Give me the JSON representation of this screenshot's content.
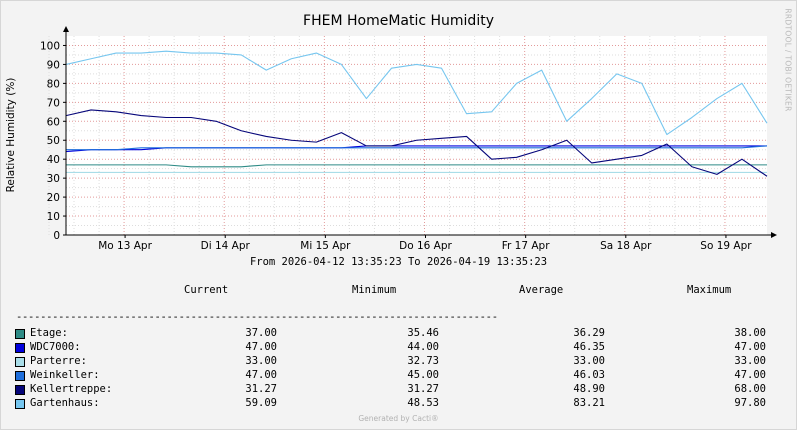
{
  "chart_data": {
    "type": "line",
    "title": "FHEM HomeMatic Humidity",
    "ylabel": "Relative Humidity (%)",
    "ylim": [
      0,
      105
    ],
    "yticks": [
      0,
      10,
      20,
      30,
      40,
      50,
      60,
      70,
      80,
      90,
      100
    ],
    "xticks": [
      "Mo 13 Apr",
      "Di 14 Apr",
      "Mi 15 Apr",
      "Do 16 Apr",
      "Fr 17 Apr",
      "Sa 18 Apr",
      "So 19 Apr"
    ],
    "x": [
      0.0,
      0.25,
      0.5,
      0.75,
      1.0,
      1.25,
      1.5,
      1.75,
      2.0,
      2.25,
      2.5,
      2.75,
      3.0,
      3.25,
      3.5,
      3.75,
      4.0,
      4.25,
      4.5,
      4.75,
      5.0,
      5.25,
      5.5,
      5.75,
      6.0,
      6.25,
      6.5,
      6.75,
      7.0
    ],
    "series": [
      {
        "name": "Etage",
        "color": "#2e8b86",
        "values": [
          37,
          37,
          37,
          37,
          37,
          36,
          36,
          36,
          37,
          37,
          37,
          37,
          37,
          37,
          37,
          37,
          37,
          37,
          37,
          37,
          37,
          37,
          37,
          37,
          37,
          37,
          37,
          37,
          37
        ]
      },
      {
        "name": "WDC7000",
        "color": "#0000dd",
        "values": [
          44,
          45,
          45,
          45,
          46,
          46,
          46,
          46,
          46,
          46,
          46,
          46,
          47,
          47,
          47,
          47,
          47,
          47,
          47,
          47,
          47,
          47,
          47,
          47,
          47,
          47,
          47,
          47,
          47
        ]
      },
      {
        "name": "Parterre",
        "color": "#a9dde8",
        "values": [
          33,
          33,
          33,
          33,
          33,
          33,
          33,
          33,
          33,
          33,
          33,
          33,
          33,
          33,
          33,
          33,
          33,
          33,
          33,
          33,
          33,
          33,
          33,
          33,
          33,
          33,
          33,
          33,
          33
        ]
      },
      {
        "name": "Weinkeller",
        "color": "#1f6fdc",
        "values": [
          45,
          45,
          45,
          46,
          46,
          46,
          46,
          46,
          46,
          46,
          46,
          46,
          46,
          46,
          46,
          46,
          46,
          46,
          46,
          46,
          46,
          46,
          46,
          46,
          46,
          46,
          46,
          46,
          47
        ]
      },
      {
        "name": "Kellertreppe",
        "color": "#06067a",
        "values": [
          63,
          66,
          65,
          63,
          62,
          62,
          60,
          55,
          52,
          50,
          49,
          54,
          47,
          47,
          50,
          51,
          52,
          40,
          41,
          45,
          50,
          38,
          40,
          42,
          48,
          36,
          32,
          40,
          31
        ]
      },
      {
        "name": "Gartenhaus",
        "color": "#76c6ef",
        "values": [
          90,
          93,
          96,
          96,
          97,
          96,
          96,
          95,
          87,
          93,
          96,
          90,
          72,
          88,
          90,
          88,
          64,
          65,
          80,
          87,
          60,
          72,
          85,
          80,
          53,
          62,
          72,
          80,
          59
        ]
      }
    ],
    "grid": true
  },
  "legend_header": {
    "current": "Current",
    "minimum": "Minimum",
    "average": "Average",
    "maximum": "Maximum"
  },
  "date_range": "From 2026-04-12 13:35:23 To 2026-04-19 13:35:23",
  "dashes": "--------------------------------------------------------------------------------",
  "legend_rows": [
    {
      "label": "Etage:",
      "color": "#2e8b86",
      "current": "37.00",
      "minimum": "35.46",
      "average": "36.29",
      "maximum": "38.00"
    },
    {
      "label": "WDC7000:",
      "color": "#0000dd",
      "current": "47.00",
      "minimum": "44.00",
      "average": "46.35",
      "maximum": "47.00"
    },
    {
      "label": "Parterre:",
      "color": "#a9dde8",
      "current": "33.00",
      "minimum": "32.73",
      "average": "33.00",
      "maximum": "33.00"
    },
    {
      "label": "Weinkeller:",
      "color": "#1f6fdc",
      "current": "47.00",
      "minimum": "45.00",
      "average": "46.03",
      "maximum": "47.00"
    },
    {
      "label": "Kellertreppe:",
      "color": "#06067a",
      "current": "31.27",
      "minimum": "31.27",
      "average": "48.90",
      "maximum": "68.00"
    },
    {
      "label": "Gartenhaus:",
      "color": "#76c6ef",
      "current": "59.09",
      "minimum": "48.53",
      "average": "83.21",
      "maximum": "97.80"
    }
  ],
  "watermark": "RRDTOOL / TOBI OETIKER",
  "footer": "Generated by Cacti®"
}
